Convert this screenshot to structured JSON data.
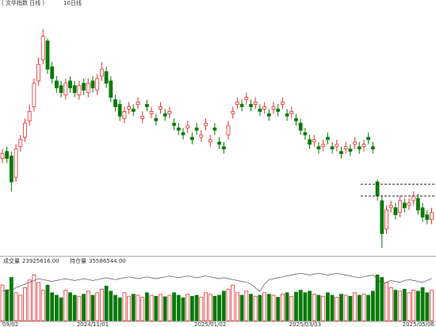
{
  "header": {
    "title": "( 文华指数 日线 )",
    "indicator": "10日线"
  },
  "volume_header": [
    {
      "name": "成交量",
      "value": "23925616.00"
    },
    {
      "name": "持仓量",
      "value": "35586544.00"
    }
  ],
  "chart_data": {
    "type": "candlestick",
    "open": [
      40,
      43,
      41,
      32,
      45,
      49,
      56,
      62,
      73,
      82,
      90,
      79,
      73,
      71,
      67,
      73,
      71,
      67,
      72,
      68,
      73,
      69,
      75,
      77,
      73,
      65,
      63,
      57,
      61,
      61,
      63,
      57,
      63,
      59,
      57,
      61,
      59,
      59,
      55,
      53,
      51,
      53,
      49,
      53,
      49,
      54,
      47,
      53,
      47,
      45,
      50,
      59,
      63,
      63,
      65,
      63,
      63,
      61,
      61,
      59,
      61,
      61,
      63,
      59,
      59,
      57,
      55,
      51,
      48,
      47,
      45,
      45,
      49,
      45,
      45,
      43,
      44,
      44,
      46,
      45,
      45,
      49,
      45,
      30,
      22,
      10,
      19,
      19,
      17,
      21,
      20,
      22,
      23,
      19,
      16,
      14
    ],
    "high": [
      44,
      45,
      43,
      46,
      50,
      57,
      63,
      74,
      83,
      95,
      91,
      81,
      75,
      73,
      74,
      75,
      73,
      73,
      74,
      74,
      75,
      76,
      81,
      79,
      75,
      67,
      65,
      62,
      64,
      63,
      66,
      60,
      65,
      62,
      59,
      64,
      61,
      62,
      57,
      55,
      53,
      56,
      51,
      55,
      52,
      57,
      50,
      55,
      49,
      47,
      56,
      62,
      66,
      65,
      68,
      65,
      66,
      63,
      64,
      61,
      64,
      63,
      66,
      61,
      62,
      59,
      57,
      53,
      50,
      50,
      47,
      48,
      51,
      47,
      48,
      45,
      47,
      46,
      49,
      47,
      48,
      51,
      47,
      31,
      24,
      20,
      22,
      21,
      24,
      23,
      23,
      26,
      25,
      21,
      18,
      19
    ],
    "low": [
      38,
      38,
      26,
      30,
      43,
      47,
      54,
      60,
      71,
      80,
      76,
      72,
      68,
      66,
      65,
      68,
      66,
      65,
      67,
      66,
      68,
      67,
      73,
      70,
      64,
      60,
      56,
      55,
      59,
      58,
      61,
      55,
      60,
      57,
      54,
      59,
      56,
      57,
      52,
      50,
      48,
      51,
      46,
      50,
      47,
      52,
      45,
      50,
      44,
      42,
      48,
      57,
      61,
      60,
      63,
      60,
      61,
      58,
      59,
      56,
      59,
      58,
      61,
      56,
      57,
      54,
      50,
      48,
      44,
      45,
      42,
      43,
      46,
      42,
      43,
      40,
      42,
      41,
      44,
      42,
      43,
      46,
      42,
      22,
      2,
      8,
      17,
      14,
      15,
      17,
      18,
      20,
      16,
      13,
      12,
      12
    ],
    "close": [
      42,
      40,
      30,
      44,
      48,
      55,
      60,
      72,
      80,
      92,
      78,
      74,
      70,
      68,
      72,
      70,
      68,
      71,
      69,
      72,
      70,
      74,
      78,
      72,
      66,
      62,
      58,
      60,
      62,
      60,
      64,
      58,
      62,
      60,
      56,
      62,
      58,
      60,
      54,
      52,
      50,
      54,
      48,
      52,
      50,
      55,
      48,
      52,
      46,
      44,
      54,
      60,
      64,
      62,
      66,
      62,
      64,
      60,
      62,
      58,
      62,
      60,
      64,
      58,
      60,
      56,
      52,
      50,
      46,
      48,
      44,
      46,
      48,
      44,
      46,
      42,
      45,
      43,
      47,
      44,
      46,
      48,
      44,
      24,
      8,
      18,
      20,
      16,
      22,
      19,
      21,
      24,
      18,
      15,
      14,
      17
    ],
    "ylim": [
      0,
      100
    ],
    "reference_lines": [
      29,
      24
    ],
    "volume": [
      70,
      60,
      85,
      55,
      50,
      65,
      80,
      90,
      75,
      60,
      70,
      55,
      50,
      45,
      60,
      55,
      50,
      48,
      52,
      58,
      50,
      55,
      62,
      68,
      58,
      50,
      45,
      55,
      48,
      52,
      50,
      46,
      55,
      50,
      48,
      52,
      47,
      50,
      55,
      50,
      45,
      52,
      48,
      50,
      46,
      55,
      52,
      48,
      50,
      58,
      62,
      70,
      55,
      50,
      58,
      52,
      48,
      50,
      55,
      52,
      50,
      46,
      52,
      55,
      48,
      56,
      60,
      55,
      58,
      52,
      50,
      48,
      55,
      50,
      46,
      52,
      50,
      48,
      55,
      50,
      52,
      50,
      58,
      90,
      85,
      75,
      65,
      60,
      58,
      62,
      55,
      60,
      58,
      65,
      55,
      60
    ],
    "volume_ylim": [
      0,
      100
    ],
    "open_interest": [
      72,
      74,
      73,
      76,
      78,
      80,
      82,
      84,
      86,
      85,
      84,
      83,
      84,
      85,
      86,
      85,
      84,
      85,
      86,
      85,
      84,
      85,
      86,
      87,
      86,
      85,
      86,
      87,
      88,
      87,
      86,
      87,
      88,
      87,
      86,
      87,
      88,
      89,
      88,
      87,
      88,
      89,
      88,
      87,
      88,
      89,
      88,
      87,
      86,
      87,
      86,
      85,
      84,
      83,
      82,
      80,
      76,
      72,
      80,
      85,
      86,
      87,
      88,
      89,
      90,
      91,
      92,
      91,
      90,
      91,
      92,
      91,
      90,
      91,
      92,
      91,
      90,
      89,
      88,
      87,
      88,
      89,
      90,
      86,
      80,
      82,
      84,
      83,
      82,
      84,
      85,
      84,
      83,
      82,
      84,
      86
    ],
    "y2lim": [
      40,
      100
    ],
    "up_color": "#e83030",
    "down_color": "#0a7a0a",
    "x_labels": [
      {
        "value": 0,
        "label": "09/02"
      },
      {
        "value": 20,
        "label": "2024/11/01"
      },
      {
        "value": 46,
        "label": "2025/01/02"
      },
      {
        "value": 67,
        "label": "2025/03/03"
      },
      {
        "value": 95,
        "label": "2025/05/06"
      }
    ]
  }
}
